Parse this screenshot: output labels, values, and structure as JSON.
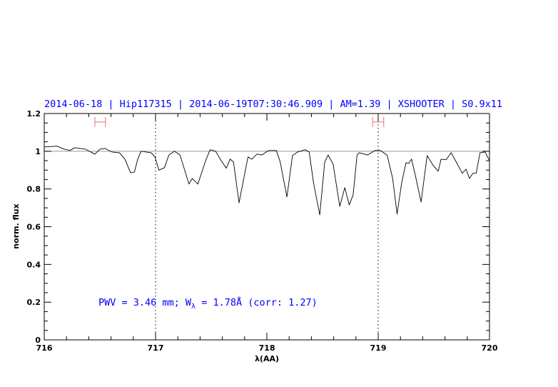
{
  "chart_data": {
    "type": "line",
    "title": "2014-06-18 | Hip117315 | 2014-06-19T07:30:46.909 | AM=1.39 | XSHOOTER | S0.9x11",
    "xlabel": "λ(AA)",
    "ylabel": "norm. flux",
    "xlim": [
      716,
      720
    ],
    "ylim": [
      0,
      1.2
    ],
    "x_ticks": [
      "716",
      "717",
      "718",
      "719",
      "720"
    ],
    "y_ticks": [
      "0",
      "0.2",
      "0.4",
      "0.6",
      "0.8",
      "1",
      "1.2"
    ],
    "grid": false,
    "reference_line": {
      "y": 1,
      "color": "#e88a8a"
    },
    "vertical_markers": [
      717,
      719
    ],
    "error_bars": [
      {
        "x_range": [
          716.455,
          716.55
        ],
        "y": 1.155,
        "color": "#f07070"
      },
      {
        "x_range": [
          718.95,
          719.05
        ],
        "y": 1.155,
        "color": "#f07070"
      }
    ],
    "annotation": {
      "prefix": "PWV = 3.46 mm; W",
      "subscript": "λ",
      "suffix": " = 1.78Å (corr: 1.27)"
    },
    "series": [
      {
        "color": "#000000",
        "x": [
          716.0,
          716.115,
          716.18,
          716.23,
          716.275,
          716.37,
          716.455,
          716.5,
          716.545,
          716.61,
          716.675,
          716.725,
          716.775,
          716.81,
          716.84,
          716.87,
          716.96,
          716.995,
          717.03,
          717.08,
          717.12,
          717.17,
          717.22,
          717.3,
          717.33,
          717.38,
          717.45,
          717.49,
          717.54,
          717.59,
          717.635,
          717.67,
          717.7,
          717.75,
          717.83,
          717.865,
          717.91,
          717.955,
          718.005,
          718.02,
          718.085,
          718.12,
          718.18,
          718.23,
          718.275,
          718.345,
          718.38,
          718.42,
          718.475,
          718.52,
          718.55,
          718.595,
          718.655,
          718.7,
          718.74,
          718.775,
          718.81,
          718.83,
          718.905,
          718.97,
          719.02,
          719.08,
          719.13,
          719.17,
          719.21,
          719.25,
          719.275,
          719.3,
          719.34,
          719.385,
          719.44,
          719.495,
          719.54,
          719.565,
          719.61,
          719.655,
          719.705,
          719.755,
          719.79,
          719.82,
          719.85,
          719.88,
          719.915,
          719.96,
          720.0
        ],
        "y": [
          1.023,
          1.027,
          1.011,
          1.004,
          1.019,
          1.011,
          0.985,
          1.011,
          1.015,
          0.996,
          0.992,
          0.958,
          0.886,
          0.89,
          0.958,
          1.0,
          0.992,
          0.97,
          0.9,
          0.913,
          0.98,
          1.0,
          0.98,
          0.826,
          0.856,
          0.826,
          0.95,
          1.008,
          1.0,
          0.95,
          0.91,
          0.958,
          0.943,
          0.727,
          0.97,
          0.958,
          0.985,
          0.98,
          1.0,
          1.004,
          1.004,
          0.943,
          0.758,
          0.977,
          0.996,
          1.008,
          0.996,
          0.83,
          0.663,
          0.943,
          0.98,
          0.932,
          0.708,
          0.807,
          0.716,
          0.769,
          0.98,
          0.992,
          0.98,
          1.004,
          1.004,
          0.98,
          0.856,
          0.667,
          0.83,
          0.939,
          0.936,
          0.958,
          0.856,
          0.731,
          0.977,
          0.924,
          0.894,
          0.958,
          0.955,
          0.992,
          0.939,
          0.883,
          0.905,
          0.856,
          0.883,
          0.883,
          0.992,
          0.996,
          0.95
        ]
      }
    ]
  }
}
